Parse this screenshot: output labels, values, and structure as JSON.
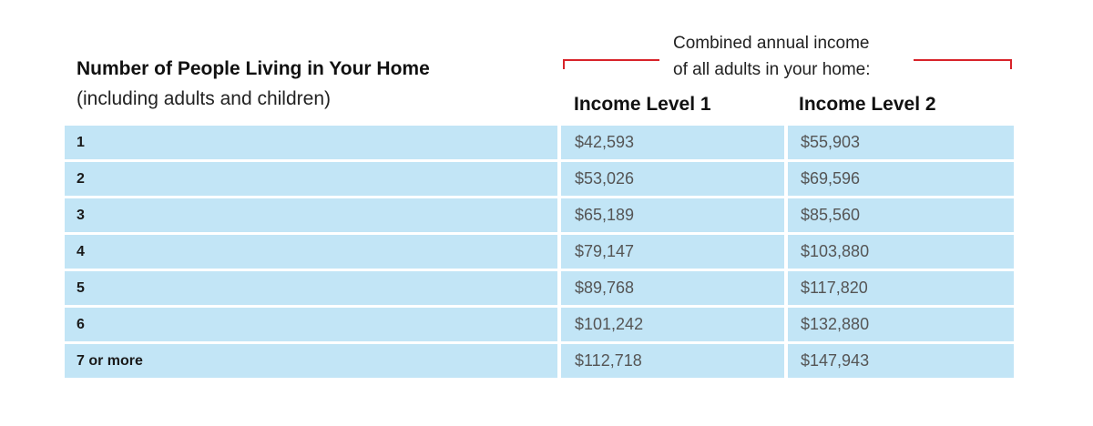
{
  "header": {
    "title": "Number of People Living in Your Home",
    "subtitle": "(including adults and children)"
  },
  "note": {
    "line1": "Combined annual income",
    "line2": "of all adults in your home:",
    "bracket_color": "#d8232a"
  },
  "columns": {
    "income_level_1": "Income Level 1",
    "income_level_2": "Income Level 2"
  },
  "colors": {
    "row_background": "#c2e5f6"
  },
  "rows": [
    {
      "people": "1",
      "income_level_1": "$42,593",
      "income_level_2": "$55,903"
    },
    {
      "people": "2",
      "income_level_1": "$53,026",
      "income_level_2": "$69,596"
    },
    {
      "people": "3",
      "income_level_1": "$65,189",
      "income_level_2": "$85,560"
    },
    {
      "people": "4",
      "income_level_1": "$79,147",
      "income_level_2": "$103,880"
    },
    {
      "people": "5",
      "income_level_1": "$89,768",
      "income_level_2": "$117,820"
    },
    {
      "people": "6",
      "income_level_1": "$101,242",
      "income_level_2": "$132,880"
    },
    {
      "people": "7 or more",
      "income_level_1": "$112,718",
      "income_level_2": "$147,943"
    }
  ]
}
